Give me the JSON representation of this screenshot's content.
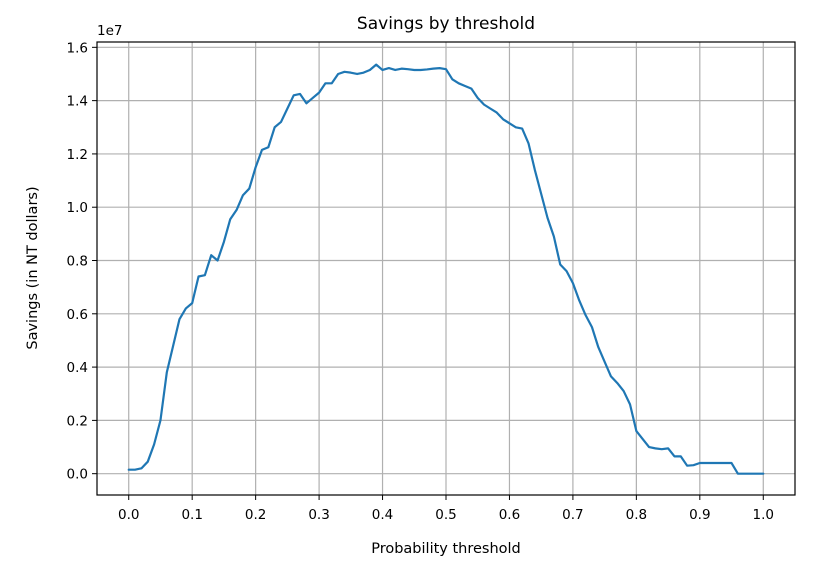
{
  "chart_data": {
    "type": "line",
    "title": "Savings by threshold",
    "xlabel": "Probability threshold",
    "ylabel": "Savings (in NT dollars)",
    "y_offset_label": "1e7",
    "xlim": [
      -0.05,
      1.05
    ],
    "ylim": [
      -0.08,
      1.62
    ],
    "grid": true,
    "legend": "none",
    "x_ticks": [
      {
        "value": 0.0,
        "label": "0.0"
      },
      {
        "value": 0.1,
        "label": "0.1"
      },
      {
        "value": 0.2,
        "label": "0.2"
      },
      {
        "value": 0.3,
        "label": "0.3"
      },
      {
        "value": 0.4,
        "label": "0.4"
      },
      {
        "value": 0.5,
        "label": "0.5"
      },
      {
        "value": 0.6,
        "label": "0.6"
      },
      {
        "value": 0.7,
        "label": "0.7"
      },
      {
        "value": 0.8,
        "label": "0.8"
      },
      {
        "value": 0.9,
        "label": "0.9"
      },
      {
        "value": 1.0,
        "label": "1.0"
      }
    ],
    "y_ticks": [
      {
        "value": 0.0,
        "label": "0.0"
      },
      {
        "value": 0.2,
        "label": "0.2"
      },
      {
        "value": 0.4,
        "label": "0.4"
      },
      {
        "value": 0.6,
        "label": "0.6"
      },
      {
        "value": 0.8,
        "label": "0.8"
      },
      {
        "value": 1.0,
        "label": "1.0"
      },
      {
        "value": 1.2,
        "label": "1.2"
      },
      {
        "value": 1.4,
        "label": "1.4"
      },
      {
        "value": 1.6,
        "label": "1.6"
      }
    ],
    "series": [
      {
        "color": "#1f77b4",
        "x": [
          0.0,
          0.01,
          0.02,
          0.03,
          0.04,
          0.05,
          0.06,
          0.07,
          0.08,
          0.09,
          0.1,
          0.11,
          0.12,
          0.13,
          0.14,
          0.15,
          0.16,
          0.17,
          0.18,
          0.19,
          0.2,
          0.21,
          0.22,
          0.23,
          0.24,
          0.25,
          0.26,
          0.27,
          0.28,
          0.29,
          0.3,
          0.31,
          0.32,
          0.33,
          0.34,
          0.35,
          0.36,
          0.37,
          0.38,
          0.39,
          0.4,
          0.41,
          0.42,
          0.43,
          0.44,
          0.45,
          0.46,
          0.47,
          0.48,
          0.49,
          0.5,
          0.51,
          0.52,
          0.53,
          0.54,
          0.55,
          0.56,
          0.57,
          0.58,
          0.59,
          0.6,
          0.61,
          0.62,
          0.63,
          0.64,
          0.65,
          0.66,
          0.67,
          0.68,
          0.69,
          0.7,
          0.71,
          0.72,
          0.73,
          0.74,
          0.75,
          0.76,
          0.77,
          0.78,
          0.79,
          0.8,
          0.81,
          0.82,
          0.83,
          0.84,
          0.85,
          0.86,
          0.87,
          0.88,
          0.89,
          0.9,
          0.91,
          0.92,
          0.93,
          0.94,
          0.95,
          0.96,
          0.97,
          0.98,
          0.99,
          1.0
        ],
        "y": [
          0.015,
          0.015,
          0.02,
          0.045,
          0.11,
          0.2,
          0.38,
          0.48,
          0.58,
          0.62,
          0.64,
          0.74,
          0.745,
          0.82,
          0.8,
          0.87,
          0.955,
          0.99,
          1.045,
          1.07,
          1.15,
          1.215,
          1.225,
          1.3,
          1.32,
          1.37,
          1.42,
          1.425,
          1.39,
          1.41,
          1.43,
          1.465,
          1.465,
          1.5,
          1.508,
          1.505,
          1.5,
          1.505,
          1.515,
          1.535,
          1.515,
          1.522,
          1.515,
          1.52,
          1.518,
          1.515,
          1.515,
          1.517,
          1.52,
          1.522,
          1.518,
          1.48,
          1.465,
          1.455,
          1.445,
          1.41,
          1.385,
          1.37,
          1.355,
          1.33,
          1.315,
          1.3,
          1.295,
          1.24,
          1.14,
          1.05,
          0.96,
          0.89,
          0.785,
          0.76,
          0.715,
          0.65,
          0.595,
          0.55,
          0.475,
          0.42,
          0.365,
          0.34,
          0.31,
          0.26,
          0.16,
          0.13,
          0.1,
          0.095,
          0.092,
          0.095,
          0.065,
          0.065,
          0.03,
          0.032,
          0.04,
          0.04,
          0.04,
          0.04,
          0.04,
          0.04,
          0.0,
          0.0,
          0.0,
          0.0,
          0.0
        ]
      }
    ]
  }
}
